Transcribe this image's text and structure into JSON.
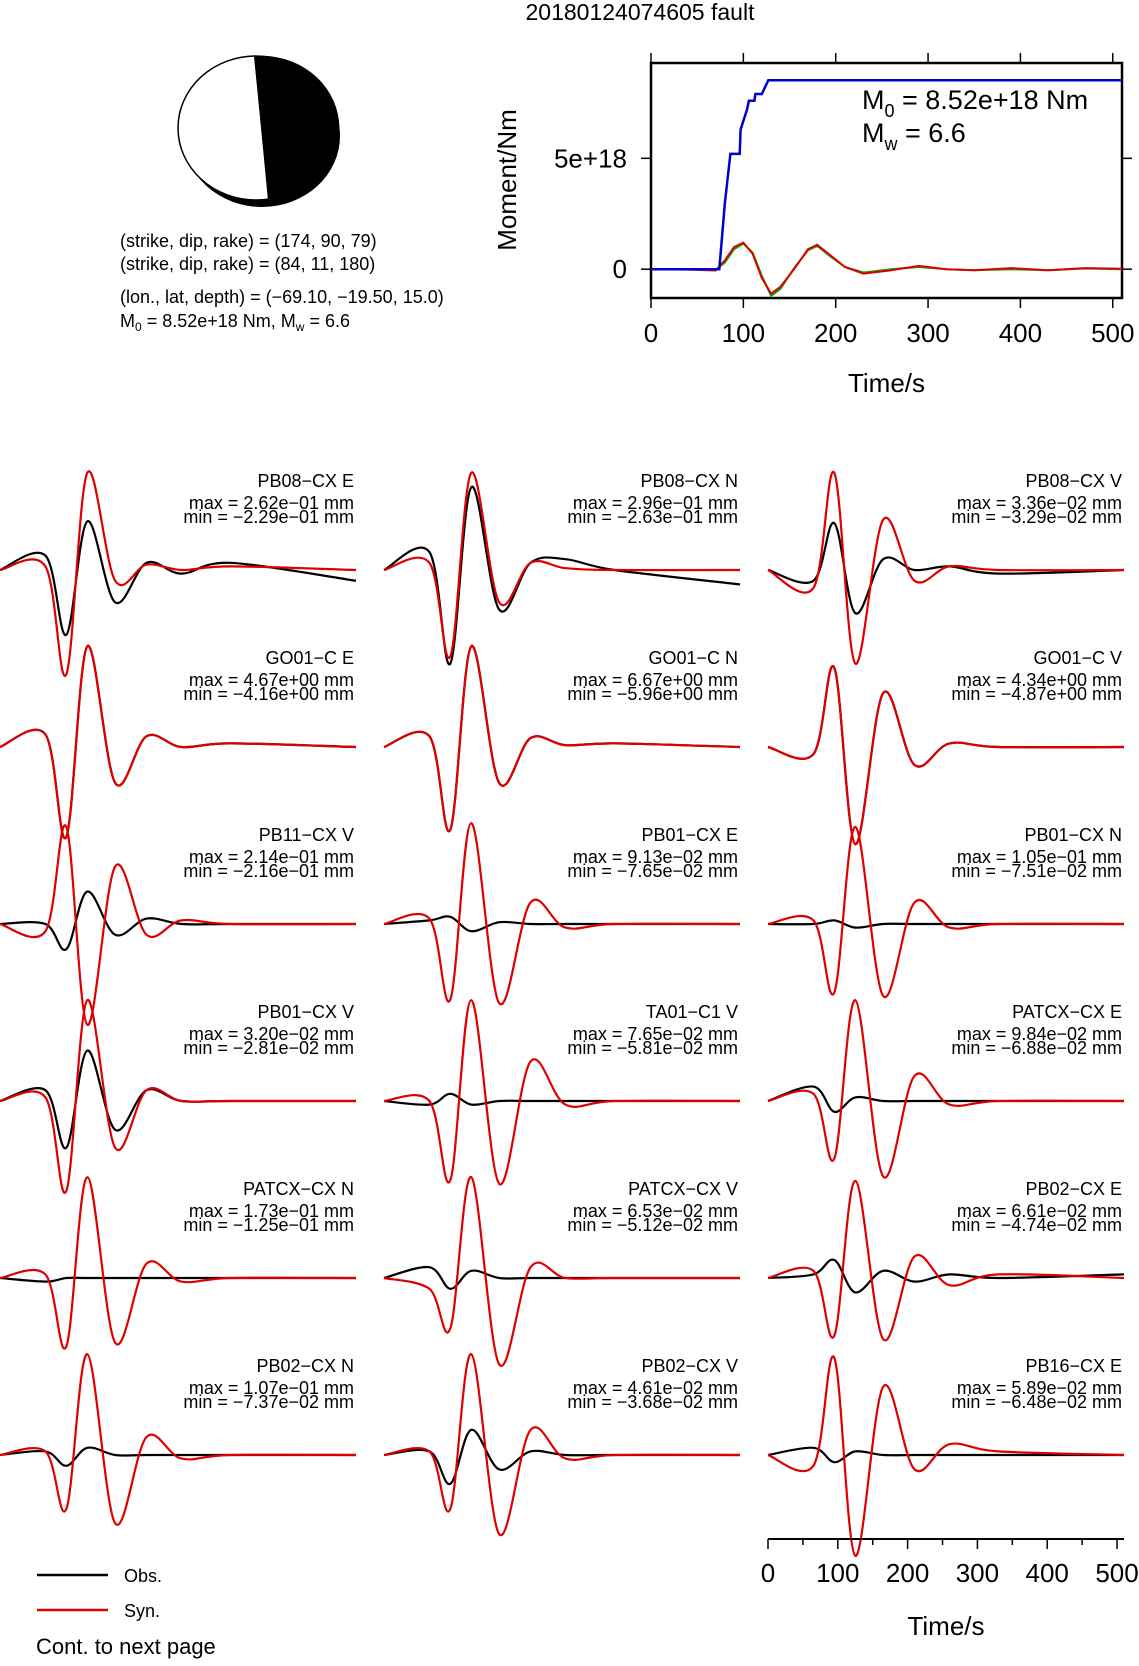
{
  "page": {
    "title": "20180124074605 fault",
    "footer": "Cont. to next page",
    "colors": {
      "obs": "#000000",
      "syn": "#dd0000",
      "moment_total": "#0000cc",
      "moment_rate_a": "#dd0000",
      "moment_rate_b": "#00aa00"
    }
  },
  "mechanism": {
    "line1": "(strike, dip, rake) = (174, 90, 79)",
    "line2": "(strike, dip, rake) = (84, 11, 180)",
    "line3": "(lon., lat, depth) = (−69.10, −19.50, 15.0)",
    "m0_label": "M",
    "m0_sub": "0",
    "m0_value": " = 8.52e+18 Nm, M",
    "mw_sub": "w",
    "mw_value": " = 6.6"
  },
  "legend": {
    "obs_label": "Obs.",
    "syn_label": "Syn."
  },
  "chart_data": [
    {
      "type": "line",
      "name": "moment-function",
      "ylabel": "Moment/Nm",
      "xlabel": "Time/s",
      "xlim": [
        0,
        510
      ],
      "ylim": [
        -1.3e+18,
        9.3e+18
      ],
      "x_ticks": [
        "0",
        "100",
        "200",
        "300",
        "400",
        "500"
      ],
      "y_ticks": [
        "0",
        "5e+18"
      ],
      "annotation_m0": {
        "sym": "M",
        "sub": "0",
        "text": " = 8.52e+18 Nm"
      },
      "annotation_mw": {
        "sym": "M",
        "sub": "w",
        "text": " = 6.6"
      },
      "series": [
        {
          "key": "cumulative",
          "x": [
            0,
            74,
            80,
            86,
            88,
            96,
            97,
            104,
            106,
            112,
            113,
            120,
            127,
            130,
            510
          ],
          "y": [
            0,
            0,
            3e+18,
            5.2e+18,
            5.2e+18,
            5.2e+18,
            6.3e+18,
            7.2e+18,
            7.6e+18,
            7.6e+18,
            7.9e+18,
            7.9e+18,
            8.52e+18,
            8.52e+18,
            8.52e+18
          ]
        },
        {
          "key": "rate_a",
          "x": [
            0,
            40,
            70,
            80,
            90,
            100,
            110,
            120,
            130,
            140,
            155,
            170,
            180,
            195,
            210,
            230,
            260,
            290,
            320,
            350,
            390,
            430,
            470,
            510
          ],
          "y": [
            0,
            -2e+16,
            -6e+16,
            4e+17,
            1e+18,
            1.2e+18,
            7e+17,
            -4e+17,
            -1.1e+18,
            -8e+17,
            0.0,
            9e+17,
            1.1e+18,
            6e+17,
            1e+17,
            -2e+17,
            -5e+16,
            1.5e+17,
            0.0,
            -5e+16,
            5e+16,
            -5e+16,
            5e+16,
            2e+16
          ]
        },
        {
          "key": "rate_b",
          "x": [
            0,
            40,
            70,
            80,
            90,
            100,
            110,
            120,
            130,
            140,
            155,
            170,
            180,
            195,
            210,
            230,
            260,
            290,
            320,
            350,
            390,
            430,
            470,
            510
          ],
          "y": [
            0,
            0,
            -3e+16,
            3e+17,
            9e+17,
            1.15e+18,
            7.5e+17,
            -3e+17,
            -1.2e+18,
            -9e+17,
            5e+16,
            8.5e+17,
            1.05e+18,
            5.5e+17,
            1e+17,
            -1.5e+17,
            0.0,
            1e+17,
            0.0,
            -5e+16,
            0.0,
            -5e+16,
            3e+16,
            0.0
          ]
        }
      ]
    },
    {
      "type": "line",
      "name": "waveforms",
      "xlabel": "Time/s",
      "xlim": [
        0,
        510
      ],
      "x_ticks": [
        "0",
        "100",
        "200",
        "300",
        "400",
        "500"
      ],
      "stations": [
        {
          "label": "PB08−CX E",
          "max": "max = 2.62e−01 mm",
          "min": "min = −2.29e−01 mm",
          "obs": [
            0,
            0.4,
            -1.8,
            1.35,
            -0.9,
            0.2,
            -0.1,
            0.2,
            -0.3
          ],
          "syn": [
            0,
            0.1,
            -2.9,
            2.7,
            -0.3,
            0.15,
            0,
            0.1,
            0
          ]
        },
        {
          "label": "PB08−CX N",
          "max": "max = 2.96e−01 mm",
          "min": "min = −2.63e−01 mm",
          "obs": [
            0,
            0.5,
            -2.6,
            2.3,
            -1.1,
            0.2,
            0.3,
            0,
            -0.4
          ],
          "syn": [
            0,
            0.2,
            -2.4,
            2.7,
            -0.9,
            0.2,
            0.05,
            0,
            0
          ]
        },
        {
          "label": "PB08−CX V",
          "max": "max = 3.36e−02 mm",
          "min": "min = −3.29e−02 mm",
          "obs": [
            0,
            -0.3,
            1.3,
            -1.2,
            0.3,
            0,
            0.1,
            -0.1,
            0
          ],
          "syn": [
            0,
            -0.5,
            2.7,
            -2.6,
            1.4,
            -0.3,
            0.1,
            0,
            0
          ]
        },
        {
          "label": "GO01−C E",
          "max": "max = 4.67e+00 mm",
          "min": "min = −4.16e+00 mm",
          "obs": [
            0,
            0.35,
            -2.5,
            2.8,
            -1.0,
            0.3,
            0,
            0.1,
            0
          ],
          "syn": [
            0,
            0.35,
            -2.5,
            2.8,
            -1.0,
            0.3,
            0,
            0.1,
            0
          ]
        },
        {
          "label": "GO01−C N",
          "max": "max = 6.67e+00 mm",
          "min": "min = −5.96e+00 mm",
          "obs": [
            0,
            0.3,
            -2.3,
            2.8,
            -1.0,
            0.25,
            0.05,
            0.1,
            0
          ],
          "syn": [
            0,
            0.3,
            -2.3,
            2.8,
            -1.0,
            0.25,
            0.05,
            0.1,
            0
          ]
        },
        {
          "label": "GO01−C V",
          "max": "max = 4.34e+00 mm",
          "min": "min = −4.87e+00 mm",
          "obs": [
            0,
            -0.2,
            2.2,
            -2.7,
            1.5,
            -0.5,
            0.1,
            0,
            0
          ],
          "syn": [
            0,
            -0.2,
            2.2,
            -2.7,
            1.5,
            -0.5,
            0.1,
            0,
            0
          ]
        },
        {
          "label": "PB11−CX V",
          "max": "max = 2.14e−01 mm",
          "min": "min = −2.16e−01 mm",
          "obs": [
            0,
            0,
            -0.7,
            0.9,
            -0.3,
            0.15,
            0,
            0,
            0
          ],
          "syn": [
            0,
            -0.2,
            2.7,
            -2.8,
            1.6,
            -0.3,
            0.1,
            0,
            0
          ]
        },
        {
          "label": "PB01−CX E",
          "max": "max = 9.13e−02 mm",
          "min": "min = −7.65e−02 mm",
          "obs": [
            0,
            0.1,
            0.2,
            -0.2,
            0.05,
            0,
            0,
            0,
            0
          ],
          "syn": [
            0,
            0.15,
            -2.1,
            2.8,
            -2.2,
            0.6,
            -0.1,
            0,
            0
          ]
        },
        {
          "label": "PB01−CX N",
          "max": "max = 1.05e−01 mm",
          "min": "min = −7.51e−02 mm",
          "obs": [
            0,
            0,
            0.1,
            -0.1,
            0,
            0,
            0,
            0,
            0
          ],
          "syn": [
            0,
            0.1,
            -1.9,
            2.7,
            -2.0,
            0.6,
            -0.1,
            0,
            0
          ]
        },
        {
          "label": "PB01−CX V",
          "max": "max = 3.20e−02 mm",
          "min": "min = −2.81e−02 mm",
          "obs": [
            0,
            0.3,
            -1.3,
            1.4,
            -0.8,
            0.3,
            0,
            0,
            0
          ],
          "syn": [
            0,
            0.1,
            -2.5,
            2.8,
            -1.3,
            0.3,
            0,
            0,
            0
          ]
        },
        {
          "label": "TA01−C1 V",
          "max": "max = 7.65e−02 mm",
          "min": "min = −5.81e−02 mm",
          "obs": [
            0,
            -0.1,
            0.2,
            -0.1,
            0,
            0,
            0,
            0,
            0
          ],
          "syn": [
            0,
            0,
            -2.2,
            2.8,
            -2.3,
            1.1,
            -0.1,
            0,
            0
          ]
        },
        {
          "label": "PATCX−CX E",
          "max": "max = 9.84e−02 mm",
          "min": "min = −6.88e−02 mm",
          "obs": [
            0,
            0.4,
            -0.3,
            0.1,
            0,
            0,
            0,
            0,
            0
          ],
          "syn": [
            0,
            0.2,
            -1.6,
            2.8,
            -2.1,
            0.7,
            -0.1,
            0,
            0
          ]
        },
        {
          "label": "PATCX−CX N",
          "max": "max = 1.73e−01 mm",
          "min": "min = −1.25e−01 mm",
          "obs": [
            0,
            -0.1,
            0,
            0,
            0,
            0,
            0,
            0,
            0
          ],
          "syn": [
            0,
            0.1,
            -1.9,
            2.8,
            -1.8,
            0.4,
            -0.1,
            0,
            0
          ]
        },
        {
          "label": "PATCX−CX V",
          "max": "max = 6.53e−02 mm",
          "min": "min = −5.12e−02 mm",
          "obs": [
            0,
            0.3,
            -0.3,
            0.2,
            0,
            0,
            0,
            0,
            0
          ],
          "syn": [
            0,
            -0.3,
            -1.4,
            2.8,
            -2.4,
            0.3,
            0,
            0,
            0
          ]
        },
        {
          "label": "PB02−CX E",
          "max": "max = 6.61e−02 mm",
          "min": "min = −4.74e−02 mm",
          "obs": [
            0,
            0.1,
            0.5,
            -0.4,
            0.2,
            -0.1,
            0.1,
            0,
            0.1
          ],
          "syn": [
            0,
            0.2,
            -1.6,
            2.7,
            -1.7,
            0.6,
            -0.2,
            0.1,
            0
          ]
        },
        {
          "label": "PB02−CX N",
          "max": "max = 1.07e−01 mm",
          "min": "min = −7.37e−02 mm",
          "obs": [
            0,
            0.1,
            -0.3,
            0.2,
            0,
            0,
            0,
            0,
            0
          ],
          "syn": [
            0,
            0.1,
            -1.5,
            2.8,
            -1.9,
            0.5,
            -0.1,
            0,
            0
          ]
        },
        {
          "label": "PB02−CX V",
          "max": "max = 4.61e−02 mm",
          "min": "min = −3.68e−02 mm",
          "obs": [
            0,
            0.1,
            -0.8,
            0.7,
            -0.4,
            0.1,
            0,
            0,
            0
          ],
          "syn": [
            0,
            0.1,
            -1.5,
            2.8,
            -2.2,
            0.7,
            -0.1,
            0,
            0
          ]
        },
        {
          "label": "PB16−CX E",
          "max": "max = 5.89e−02 mm",
          "min": "min = −6.48e−02 mm",
          "obs": [
            0,
            0.2,
            -0.2,
            0.1,
            0,
            0,
            0,
            0,
            0
          ],
          "syn": [
            0,
            -0.3,
            2.7,
            -2.8,
            1.9,
            -0.4,
            0.3,
            0.1,
            0
          ]
        }
      ]
    }
  ]
}
